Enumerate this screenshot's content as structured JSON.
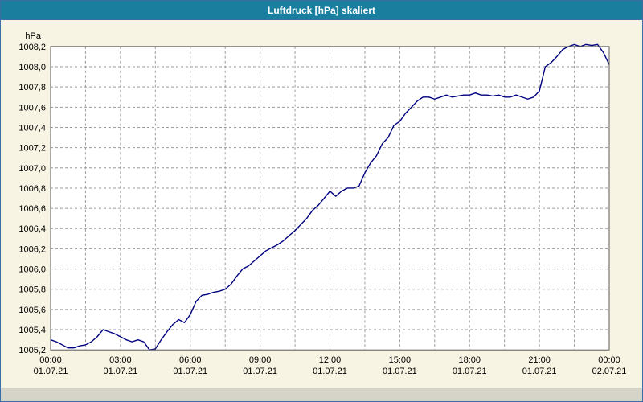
{
  "window": {
    "title": "Luftdruck [hPa] skaliert",
    "title_bar_color": "#1a7f9e",
    "background_color": "#f8f4e3",
    "border_color": "#3c6ea5"
  },
  "chart_data": {
    "type": "line",
    "title": "Luftdruck [hPa] skaliert",
    "ylabel": "hPa",
    "ylim": [
      1005.2,
      1008.2
    ],
    "y_tick_step": 0.2,
    "y_tick_labels": [
      "1008,2",
      "1008,0",
      "1007,8",
      "1007,6",
      "1007,4",
      "1007,2",
      "1007,0",
      "1006,8",
      "1006,6",
      "1006,4",
      "1006,2",
      "1006,0",
      "1005,8",
      "1005,6",
      "1005,4",
      "1005,2"
    ],
    "x_hours_range": [
      0,
      24
    ],
    "x_minor_grid_hours": 1.5,
    "x_ticks": [
      {
        "hour": 0,
        "time": "00:00",
        "date": "01.07.21"
      },
      {
        "hour": 3,
        "time": "03:00",
        "date": "01.07.21"
      },
      {
        "hour": 6,
        "time": "06:00",
        "date": "01.07.21"
      },
      {
        "hour": 9,
        "time": "09:00",
        "date": "01.07.21"
      },
      {
        "hour": 12,
        "time": "12:00",
        "date": "01.07.21"
      },
      {
        "hour": 15,
        "time": "15:00",
        "date": "01.07.21"
      },
      {
        "hour": 18,
        "time": "18:00",
        "date": "01.07.21"
      },
      {
        "hour": 21,
        "time": "21:00",
        "date": "01.07.21"
      },
      {
        "hour": 24,
        "time": "00:00",
        "date": "02.07.21"
      }
    ],
    "grid": true,
    "grid_color": "#9b9b9b",
    "plot_border_color": "#5a5a5a",
    "line_color": "#000080",
    "legend_position": "none",
    "series": [
      {
        "name": "Luftdruck",
        "x_start_hour": 0,
        "x_step_hours": 0.25,
        "values": [
          1005.3,
          1005.28,
          1005.25,
          1005.22,
          1005.22,
          1005.24,
          1005.25,
          1005.28,
          1005.33,
          1005.4,
          1005.38,
          1005.36,
          1005.33,
          1005.3,
          1005.28,
          1005.3,
          1005.28,
          1005.2,
          1005.21,
          1005.3,
          1005.38,
          1005.45,
          1005.5,
          1005.47,
          1005.55,
          1005.68,
          1005.74,
          1005.75,
          1005.77,
          1005.78,
          1005.8,
          1005.85,
          1005.93,
          1006.0,
          1006.03,
          1006.08,
          1006.13,
          1006.18,
          1006.21,
          1006.24,
          1006.28,
          1006.33,
          1006.38,
          1006.44,
          1006.5,
          1006.58,
          1006.63,
          1006.7,
          1006.77,
          1006.72,
          1006.77,
          1006.8,
          1006.8,
          1006.82,
          1006.95,
          1007.05,
          1007.12,
          1007.24,
          1007.3,
          1007.42,
          1007.46,
          1007.54,
          1007.6,
          1007.66,
          1007.7,
          1007.7,
          1007.68,
          1007.7,
          1007.72,
          1007.7,
          1007.71,
          1007.72,
          1007.72,
          1007.74,
          1007.72,
          1007.72,
          1007.71,
          1007.72,
          1007.7,
          1007.7,
          1007.72,
          1007.7,
          1007.68,
          1007.7,
          1007.76,
          1008.0,
          1008.04,
          1008.1,
          1008.17,
          1008.2,
          1008.22,
          1008.2,
          1008.22,
          1008.21,
          1008.22,
          1008.14,
          1008.02
        ]
      }
    ]
  }
}
